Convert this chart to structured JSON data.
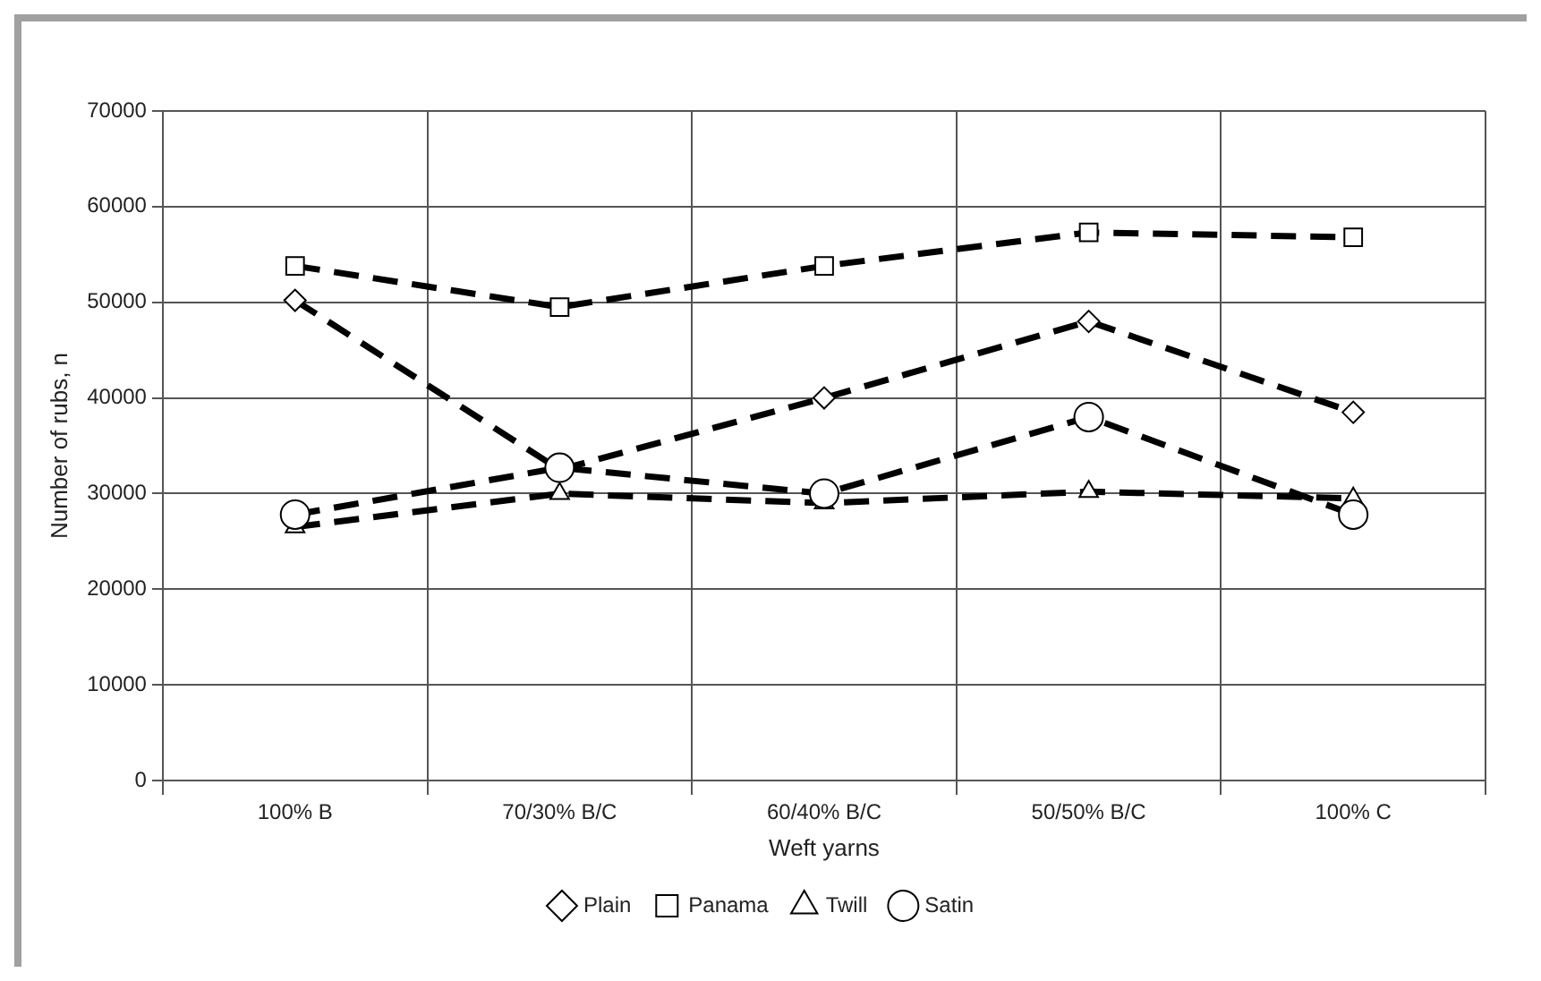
{
  "chart_data": {
    "type": "line",
    "xlabel": "Weft yarns",
    "ylabel": "Number of rubs, n",
    "categories": [
      "100% B",
      "70/30% B/C",
      "60/40% B/C",
      "50/50% B/C",
      "100% C"
    ],
    "series": [
      {
        "name": "Plain",
        "color": "#000000",
        "marker": "diamond",
        "values": [
          50200,
          32500,
          40000,
          48000,
          38500
        ]
      },
      {
        "name": "Panama",
        "color": "#000000",
        "marker": "square",
        "values": [
          53800,
          49500,
          53800,
          57300,
          56800
        ]
      },
      {
        "name": "Twill",
        "color": "#000000",
        "marker": "triangle",
        "values": [
          26500,
          30000,
          29000,
          30200,
          29500
        ]
      },
      {
        "name": "Satin",
        "color": "#000000",
        "marker": "circle",
        "values": [
          27800,
          32700,
          30000,
          38000,
          27800
        ]
      }
    ],
    "ylim": [
      0,
      70000
    ],
    "yticks": [
      0,
      10000,
      20000,
      30000,
      40000,
      50000,
      60000,
      70000
    ],
    "grid": true,
    "legend": "bottom",
    "line_style": "dashed"
  }
}
